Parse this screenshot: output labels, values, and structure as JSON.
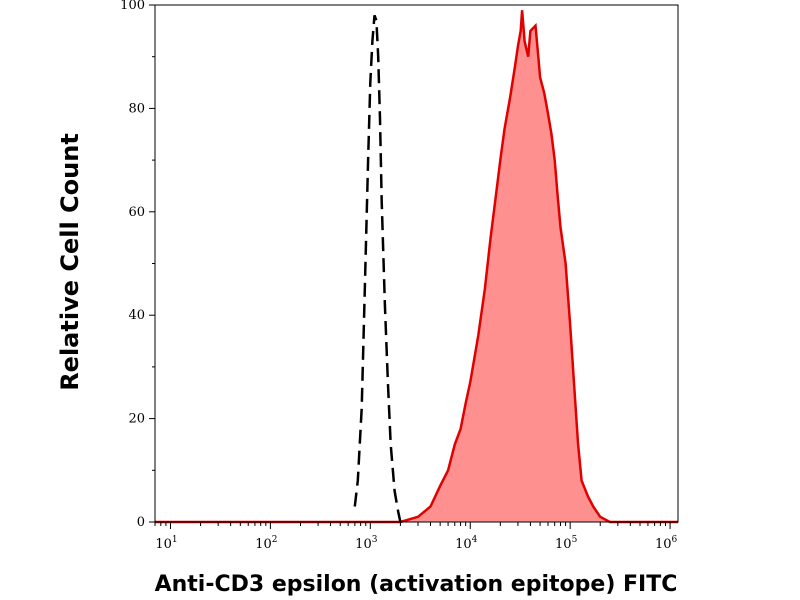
{
  "chart_data": {
    "type": "area",
    "title": "",
    "xlabel": "Anti-CD3 epsilon (activation epitope) FITC",
    "ylabel": "Relative Cell Count",
    "x_scale": "log",
    "xlim": [
      7,
      1200000
    ],
    "ylim": [
      0,
      100
    ],
    "grid": false,
    "legend": "none",
    "x_ticks": [
      {
        "base": "10",
        "exp": "1",
        "value": 10
      },
      {
        "base": "10",
        "exp": "2",
        "value": 100
      },
      {
        "base": "10",
        "exp": "3",
        "value": 1000
      },
      {
        "base": "10",
        "exp": "4",
        "value": 10000
      },
      {
        "base": "10",
        "exp": "5",
        "value": 100000
      },
      {
        "base": "10",
        "exp": "6",
        "value": 1000000
      }
    ],
    "y_ticks": [
      {
        "label": "0",
        "value": 0
      },
      {
        "label": "20",
        "value": 20
      },
      {
        "label": "40",
        "value": 40
      },
      {
        "label": "60",
        "value": 60
      },
      {
        "label": "80",
        "value": 80
      },
      {
        "label": "100",
        "value": 100
      }
    ],
    "colors": {
      "stained_line": "#e00000",
      "stained_fill": "#ff9090",
      "control_line": "#000000"
    },
    "series": [
      {
        "style": "dashed-line",
        "x": [
          700,
          750,
          820,
          880,
          950,
          1000,
          1050,
          1100,
          1150,
          1200,
          1250,
          1300,
          1400,
          1500,
          1600,
          1750,
          1900,
          2000
        ],
        "y": [
          3,
          8,
          22,
          45,
          70,
          85,
          93,
          98,
          97,
          90,
          78,
          62,
          42,
          27,
          15,
          6,
          2,
          0
        ]
      },
      {
        "style": "filled-area",
        "x": [
          2000,
          3000,
          4000,
          5000,
          6000,
          7000,
          8000,
          9000,
          10000,
          12000,
          14000,
          16000,
          18000,
          20000,
          22000,
          25000,
          28000,
          30000,
          32000,
          33000,
          35000,
          38000,
          40000,
          45000,
          48000,
          50000,
          55000,
          60000,
          65000,
          70000,
          75000,
          80000,
          90000,
          100000,
          110000,
          120000,
          130000,
          150000,
          170000,
          200000,
          250000,
          300000,
          1200000
        ],
        "y": [
          0,
          1,
          3,
          7,
          10,
          15,
          18,
          23,
          27,
          36,
          45,
          55,
          63,
          70,
          76,
          82,
          88,
          92,
          95,
          99,
          93,
          90,
          95,
          96,
          90,
          86,
          83,
          79,
          75,
          70,
          63,
          57,
          50,
          38,
          26,
          15,
          8,
          5,
          3,
          1,
          0,
          0,
          0
        ]
      }
    ]
  }
}
